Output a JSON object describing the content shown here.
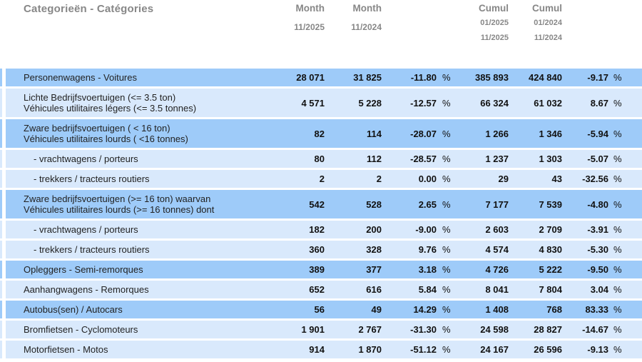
{
  "header": {
    "title": "Categorieën - Catégories",
    "month1": {
      "label": "Month",
      "period": "11/2025"
    },
    "month2": {
      "label": "Month",
      "period": "11/2024"
    },
    "cumul1": {
      "label": "Cumul",
      "from": "01/2025",
      "to": "11/2025"
    },
    "cumul2": {
      "label": "Cumul",
      "from": "01/2024",
      "to": "11/2024"
    }
  },
  "percent_sign": "%",
  "colors": {
    "row_dark": "#9ecbf9",
    "row_light": "#d9e9fc",
    "header_text": "#878787",
    "label_text": "#222222",
    "number_text": "#111111"
  },
  "rows": [
    {
      "label_nl": "Personenwagens - Voitures",
      "label_fr": "",
      "shade": "dark",
      "indent": false,
      "month1": "28 071",
      "month2": "31 825",
      "pct_month": "-11.80",
      "cumul1": "385 893",
      "cumul2": "424 840",
      "pct_cumul": "-9.17"
    },
    {
      "label_nl": "Lichte Bedrijfsvoertuigen (<= 3.5 ton)",
      "label_fr": "Véhicules utilitaires légers (<= 3.5 tonnes)",
      "shade": "light",
      "indent": false,
      "month1": "4 571",
      "month2": "5 228",
      "pct_month": "-12.57",
      "cumul1": "66 324",
      "cumul2": "61 032",
      "pct_cumul": "8.67"
    },
    {
      "label_nl": "Zware bedrijfsvoertuigen ( < 16 ton)",
      "label_fr": "Véhicules utilitaires lourds ( <16 tonnes)",
      "shade": "dark",
      "indent": false,
      "month1": "82",
      "month2": "114",
      "pct_month": "-28.07",
      "cumul1": "1 266",
      "cumul2": "1 346",
      "pct_cumul": "-5.94"
    },
    {
      "label_nl": "- vrachtwagens / porteurs",
      "label_fr": "",
      "shade": "light",
      "indent": true,
      "month1": "80",
      "month2": "112",
      "pct_month": "-28.57",
      "cumul1": "1 237",
      "cumul2": "1 303",
      "pct_cumul": "-5.07"
    },
    {
      "label_nl": "- trekkers / tracteurs routiers",
      "label_fr": "",
      "shade": "light",
      "indent": true,
      "month1": "2",
      "month2": "2",
      "pct_month": "0.00",
      "cumul1": "29",
      "cumul2": "43",
      "pct_cumul": "-32.56"
    },
    {
      "label_nl": "Zware bedrijfsvoertuigen (>= 16 ton) waarvan",
      "label_fr": "Véhicules utilitaires lourds (>= 16 tonnes) dont",
      "shade": "dark",
      "indent": false,
      "month1": "542",
      "month2": "528",
      "pct_month": "2.65",
      "cumul1": "7 177",
      "cumul2": "7 539",
      "pct_cumul": "-4.80"
    },
    {
      "label_nl": "- vrachtwagens / porteurs",
      "label_fr": "",
      "shade": "light",
      "indent": true,
      "month1": "182",
      "month2": "200",
      "pct_month": "-9.00",
      "cumul1": "2 603",
      "cumul2": "2 709",
      "pct_cumul": "-3.91"
    },
    {
      "label_nl": "- trekkers / tracteurs routiers",
      "label_fr": "",
      "shade": "light",
      "indent": true,
      "month1": "360",
      "month2": "328",
      "pct_month": "9.76",
      "cumul1": "4 574",
      "cumul2": "4 830",
      "pct_cumul": "-5.30"
    },
    {
      "label_nl": "Opleggers - Semi-remorques",
      "label_fr": "",
      "shade": "dark",
      "indent": false,
      "month1": "389",
      "month2": "377",
      "pct_month": "3.18",
      "cumul1": "4 726",
      "cumul2": "5 222",
      "pct_cumul": "-9.50"
    },
    {
      "label_nl": "Aanhangwagens - Remorques",
      "label_fr": "",
      "shade": "light",
      "indent": false,
      "month1": "652",
      "month2": "616",
      "pct_month": "5.84",
      "cumul1": "8 041",
      "cumul2": "7 804",
      "pct_cumul": "3.04"
    },
    {
      "label_nl": "Autobus(sen) / Autocars",
      "label_fr": "",
      "shade": "dark",
      "indent": false,
      "month1": "56",
      "month2": "49",
      "pct_month": "14.29",
      "cumul1": "1 408",
      "cumul2": "768",
      "pct_cumul": "83.33"
    },
    {
      "label_nl": "Bromfietsen - Cyclomoteurs",
      "label_fr": "",
      "shade": "light",
      "indent": false,
      "month1": "1 901",
      "month2": "2 767",
      "pct_month": "-31.30",
      "cumul1": "24 598",
      "cumul2": "28 827",
      "pct_cumul": "-14.67"
    },
    {
      "label_nl": "Motorfietsen - Motos",
      "label_fr": "",
      "shade": "light",
      "indent": false,
      "month1": "914",
      "month2": "1 870",
      "pct_month": "-51.12",
      "cumul1": "24 167",
      "cumul2": "26 596",
      "pct_cumul": "-9.13"
    }
  ],
  "chart_data": {
    "type": "table",
    "title": "Categorieën - Catégories",
    "columns": [
      "Categorieën - Catégories",
      "Month 11/2025",
      "Month 11/2024",
      "%",
      "Cumul 01/2025 11/2025",
      "Cumul 01/2024 11/2024",
      "%"
    ],
    "rows": [
      [
        "Personenwagens - Voitures",
        28071,
        31825,
        -11.8,
        385893,
        424840,
        -9.17
      ],
      [
        "Lichte Bedrijfsvoertuigen (<= 3.5 ton) / Véhicules utilitaires légers (<= 3.5 tonnes)",
        4571,
        5228,
        -12.57,
        66324,
        61032,
        8.67
      ],
      [
        "Zware bedrijfsvoertuigen ( < 16 ton) / Véhicules utilitaires lourds ( <16 tonnes)",
        82,
        114,
        -28.07,
        1266,
        1346,
        -5.94
      ],
      [
        "- vrachtwagens / porteurs",
        80,
        112,
        -28.57,
        1237,
        1303,
        -5.07
      ],
      [
        "- trekkers / tracteurs routiers",
        2,
        2,
        0.0,
        29,
        43,
        -32.56
      ],
      [
        "Zware bedrijfsvoertuigen (>= 16 ton) waarvan / Véhicules utilitaires lourds (>= 16 tonnes) dont",
        542,
        528,
        2.65,
        7177,
        7539,
        -4.8
      ],
      [
        "- vrachtwagens / porteurs",
        182,
        200,
        -9.0,
        2603,
        2709,
        -3.91
      ],
      [
        "- trekkers / tracteurs routiers",
        360,
        328,
        9.76,
        4574,
        4830,
        -5.3
      ],
      [
        "Opleggers - Semi-remorques",
        389,
        377,
        3.18,
        4726,
        5222,
        -9.5
      ],
      [
        "Aanhangwagens - Remorques",
        652,
        616,
        5.84,
        8041,
        7804,
        3.04
      ],
      [
        "Autobus(sen) / Autocars",
        56,
        49,
        14.29,
        1408,
        768,
        83.33
      ],
      [
        "Bromfietsen - Cyclomoteurs",
        1901,
        2767,
        -31.3,
        24598,
        28827,
        -14.67
      ],
      [
        "Motorfietsen - Motos",
        914,
        1870,
        -51.12,
        24167,
        26596,
        -9.13
      ]
    ]
  }
}
